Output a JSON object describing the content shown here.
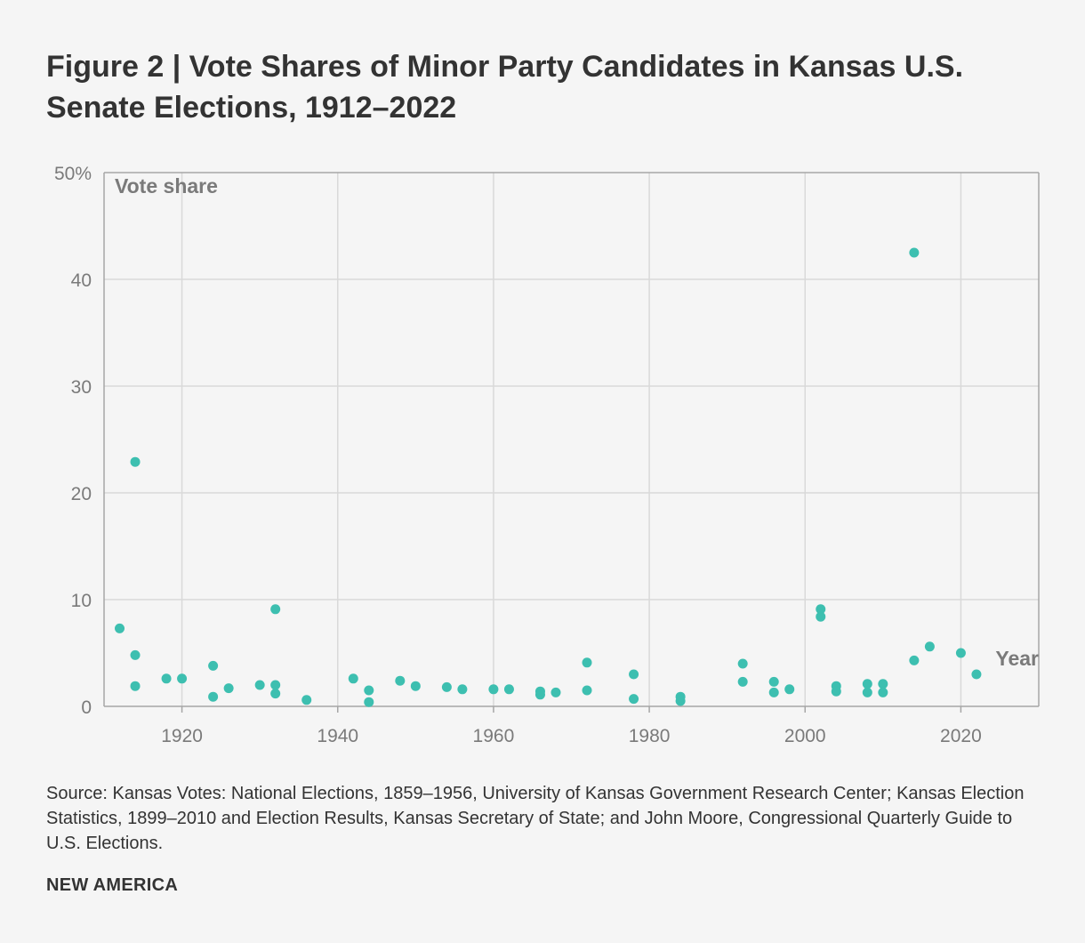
{
  "title": "Figure 2 | Vote Shares of Minor Party Candidates in Kansas U.S. Senate Elections, 1912–2022",
  "source": "Source: Kansas Votes: National Elections, 1859–1956, University of Kansas Government Research Center; Kansas Election Statistics, 1899–2010 and Election Results, Kansas Secretary of State; and John Moore, Congressional Quarterly Guide to U.S. Elections.",
  "brand": "NEW AMERICA",
  "colors": {
    "point": "#3dbfb0",
    "grid": "#d9d9d9",
    "axis": "#a6a6a6"
  },
  "chart_data": {
    "type": "scatter",
    "title": "Figure 2 | Vote Shares of Minor Party Candidates in Kansas U.S. Senate Elections, 1912–2022",
    "xlabel": "Year",
    "ylabel": "Vote share",
    "xlim": [
      1910,
      2030
    ],
    "ylim": [
      0,
      50
    ],
    "xticks": [
      {
        "value": 1920,
        "label": "1920"
      },
      {
        "value": 1940,
        "label": "1940"
      },
      {
        "value": 1960,
        "label": "1960"
      },
      {
        "value": 1980,
        "label": "1980"
      },
      {
        "value": 2000,
        "label": "2000"
      },
      {
        "value": 2020,
        "label": "2020"
      }
    ],
    "yticks": [
      {
        "value": 0,
        "label": "0"
      },
      {
        "value": 10,
        "label": "10"
      },
      {
        "value": 20,
        "label": "20"
      },
      {
        "value": 30,
        "label": "30"
      },
      {
        "value": 40,
        "label": "40"
      },
      {
        "value": 50,
        "label": "50%"
      }
    ],
    "grid": true,
    "points": [
      {
        "x": 1912,
        "y": 7.3
      },
      {
        "x": 1914,
        "y": 22.9
      },
      {
        "x": 1914,
        "y": 4.8
      },
      {
        "x": 1914,
        "y": 1.9
      },
      {
        "x": 1918,
        "y": 2.6
      },
      {
        "x": 1920,
        "y": 2.6
      },
      {
        "x": 1924,
        "y": 3.8
      },
      {
        "x": 1924,
        "y": 0.9
      },
      {
        "x": 1926,
        "y": 1.7
      },
      {
        "x": 1930,
        "y": 2.0
      },
      {
        "x": 1932,
        "y": 9.1
      },
      {
        "x": 1932,
        "y": 2.0
      },
      {
        "x": 1932,
        "y": 1.2
      },
      {
        "x": 1936,
        "y": 0.6
      },
      {
        "x": 1942,
        "y": 2.6
      },
      {
        "x": 1944,
        "y": 1.5
      },
      {
        "x": 1944,
        "y": 0.4
      },
      {
        "x": 1948,
        "y": 2.4
      },
      {
        "x": 1950,
        "y": 1.9
      },
      {
        "x": 1954,
        "y": 1.8
      },
      {
        "x": 1956,
        "y": 1.6
      },
      {
        "x": 1960,
        "y": 1.6
      },
      {
        "x": 1962,
        "y": 1.6
      },
      {
        "x": 1966,
        "y": 1.4
      },
      {
        "x": 1966,
        "y": 1.1
      },
      {
        "x": 1968,
        "y": 1.3
      },
      {
        "x": 1972,
        "y": 4.1
      },
      {
        "x": 1972,
        "y": 1.5
      },
      {
        "x": 1978,
        "y": 3.0
      },
      {
        "x": 1978,
        "y": 0.7
      },
      {
        "x": 1984,
        "y": 0.9
      },
      {
        "x": 1984,
        "y": 0.5
      },
      {
        "x": 1992,
        "y": 4.0
      },
      {
        "x": 1992,
        "y": 2.3
      },
      {
        "x": 1996,
        "y": 2.3
      },
      {
        "x": 1996,
        "y": 1.3
      },
      {
        "x": 1998,
        "y": 1.6
      },
      {
        "x": 2002,
        "y": 9.1
      },
      {
        "x": 2002,
        "y": 8.4
      },
      {
        "x": 2004,
        "y": 1.9
      },
      {
        "x": 2004,
        "y": 1.4
      },
      {
        "x": 2008,
        "y": 2.1
      },
      {
        "x": 2008,
        "y": 1.3
      },
      {
        "x": 2010,
        "y": 2.1
      },
      {
        "x": 2010,
        "y": 1.3
      },
      {
        "x": 2014,
        "y": 42.5
      },
      {
        "x": 2014,
        "y": 4.3
      },
      {
        "x": 2016,
        "y": 5.6
      },
      {
        "x": 2020,
        "y": 5.0
      },
      {
        "x": 2022,
        "y": 3.0
      }
    ]
  }
}
